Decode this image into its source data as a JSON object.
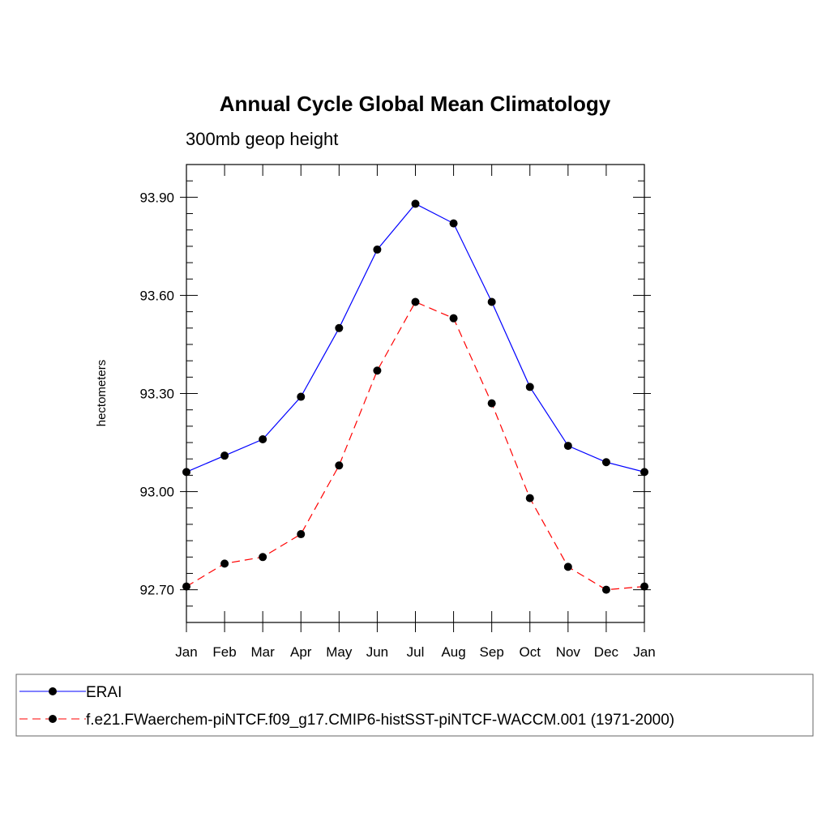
{
  "chart_data": {
    "type": "line",
    "title": "Annual Cycle Global Mean Climatology",
    "subtitle": "300mb geop height",
    "xlabel": "",
    "ylabel": "hectometers",
    "categories": [
      "Jan",
      "Feb",
      "Mar",
      "Apr",
      "May",
      "Jun",
      "Jul",
      "Aug",
      "Sep",
      "Oct",
      "Nov",
      "Dec",
      "Jan"
    ],
    "ylim": [
      92.6,
      94.0
    ],
    "yticks": [
      92.7,
      93.0,
      93.3,
      93.6,
      93.9
    ],
    "ytick_labels": [
      "92.70",
      "93.00",
      "93.30",
      "93.60",
      "93.90"
    ],
    "grid": false,
    "legend_position": "bottom",
    "series": [
      {
        "name": "ERAI",
        "color": "#0000ff",
        "dash": "solid",
        "marker": "filled-circle",
        "values": [
          93.06,
          93.11,
          93.16,
          93.29,
          93.5,
          93.74,
          93.88,
          93.82,
          93.58,
          93.32,
          93.14,
          93.09,
          93.06
        ]
      },
      {
        "name": "f.e21.FWaerchem-piNTCF.f09_g17.CMIP6-histSST-piNTCF-WACCM.001 (1971-2000)",
        "color": "#ff0000",
        "dash": "dashed",
        "marker": "filled-circle",
        "values": [
          92.71,
          92.78,
          92.8,
          92.87,
          93.08,
          93.37,
          93.58,
          93.53,
          93.27,
          92.98,
          92.77,
          92.7,
          92.71
        ]
      }
    ]
  }
}
